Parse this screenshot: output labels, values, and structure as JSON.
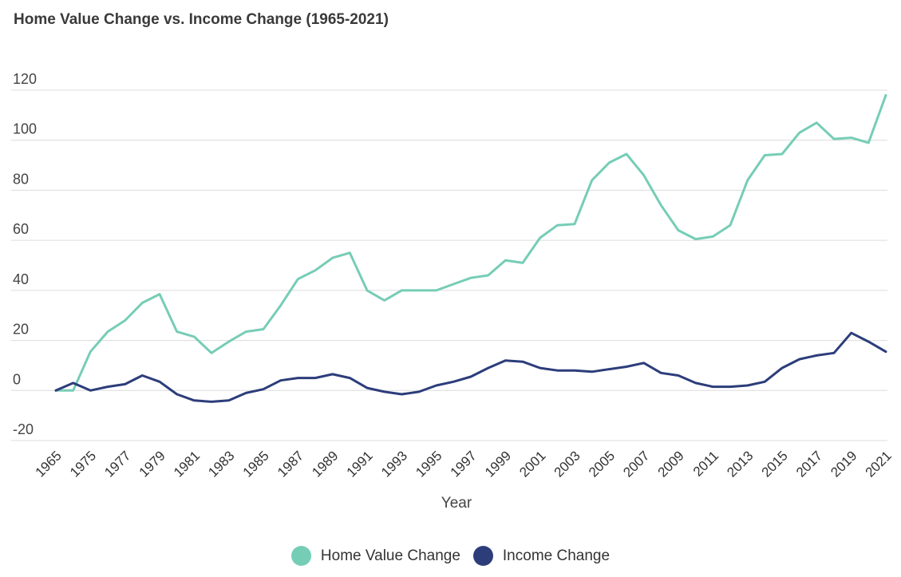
{
  "chart_data": {
    "type": "line",
    "title": "Home Value Change vs. Income Change (1965-2021)",
    "xlabel": "Year",
    "ylabel": "",
    "ylim": [
      -20,
      120
    ],
    "yticks": [
      -20,
      0,
      20,
      40,
      60,
      80,
      100,
      120
    ],
    "grid": true,
    "legend_position": "bottom-center",
    "xtick_labels": [
      "1965",
      "1975",
      "1977",
      "1979",
      "1981",
      "1983",
      "1985",
      "1987",
      "1989",
      "1991",
      "1993",
      "1995",
      "1997",
      "1999",
      "2001",
      "2003",
      "2005",
      "2007",
      "2009",
      "2011",
      "2013",
      "2015",
      "2017",
      "2019",
      "2021"
    ],
    "x": [
      "1965",
      "1970",
      "1975",
      "1976",
      "1977",
      "1978",
      "1979",
      "1980",
      "1981",
      "1982",
      "1983",
      "1984",
      "1985",
      "1986",
      "1987",
      "1988",
      "1989",
      "1990",
      "1991",
      "1992",
      "1993",
      "1994",
      "1995",
      "1996",
      "1997",
      "1998",
      "1999",
      "2000",
      "2001",
      "2002",
      "2003",
      "2004",
      "2005",
      "2006",
      "2007",
      "2008",
      "2009",
      "2010",
      "2011",
      "2012",
      "2013",
      "2014",
      "2015",
      "2016",
      "2017",
      "2018",
      "2019",
      "2020",
      "2021"
    ],
    "series": [
      {
        "name": "Home Value Change",
        "color": "#76cdb6",
        "values": [
          0,
          0,
          15.5,
          23.5,
          28,
          35,
          38.5,
          23.5,
          21.5,
          15,
          19.5,
          23.5,
          24.5,
          34,
          44.5,
          48,
          53,
          55,
          40,
          36,
          40,
          40,
          40,
          42.5,
          45,
          46,
          52,
          51,
          61,
          66,
          66.5,
          84,
          91,
          94.5,
          86,
          74,
          64,
          60.5,
          61.5,
          66,
          84,
          94,
          94.5,
          103,
          107,
          100.5,
          101,
          99,
          118
        ]
      },
      {
        "name": "Income Change",
        "color": "#2c3d7a",
        "values": [
          0,
          3,
          0,
          1.5,
          2.5,
          6,
          3.5,
          -1.5,
          -4,
          -4.5,
          -4,
          -1,
          0.5,
          4,
          5,
          5,
          6.5,
          5,
          1,
          -0.5,
          -1.5,
          -0.5,
          2,
          3.5,
          5.5,
          9,
          12,
          11.5,
          9,
          8,
          8,
          7.5,
          8.5,
          9.5,
          11,
          7,
          6,
          3,
          1.5,
          1.5,
          2,
          3.5,
          9,
          12.5,
          14,
          15,
          23,
          19.5,
          15.5
        ]
      }
    ]
  }
}
